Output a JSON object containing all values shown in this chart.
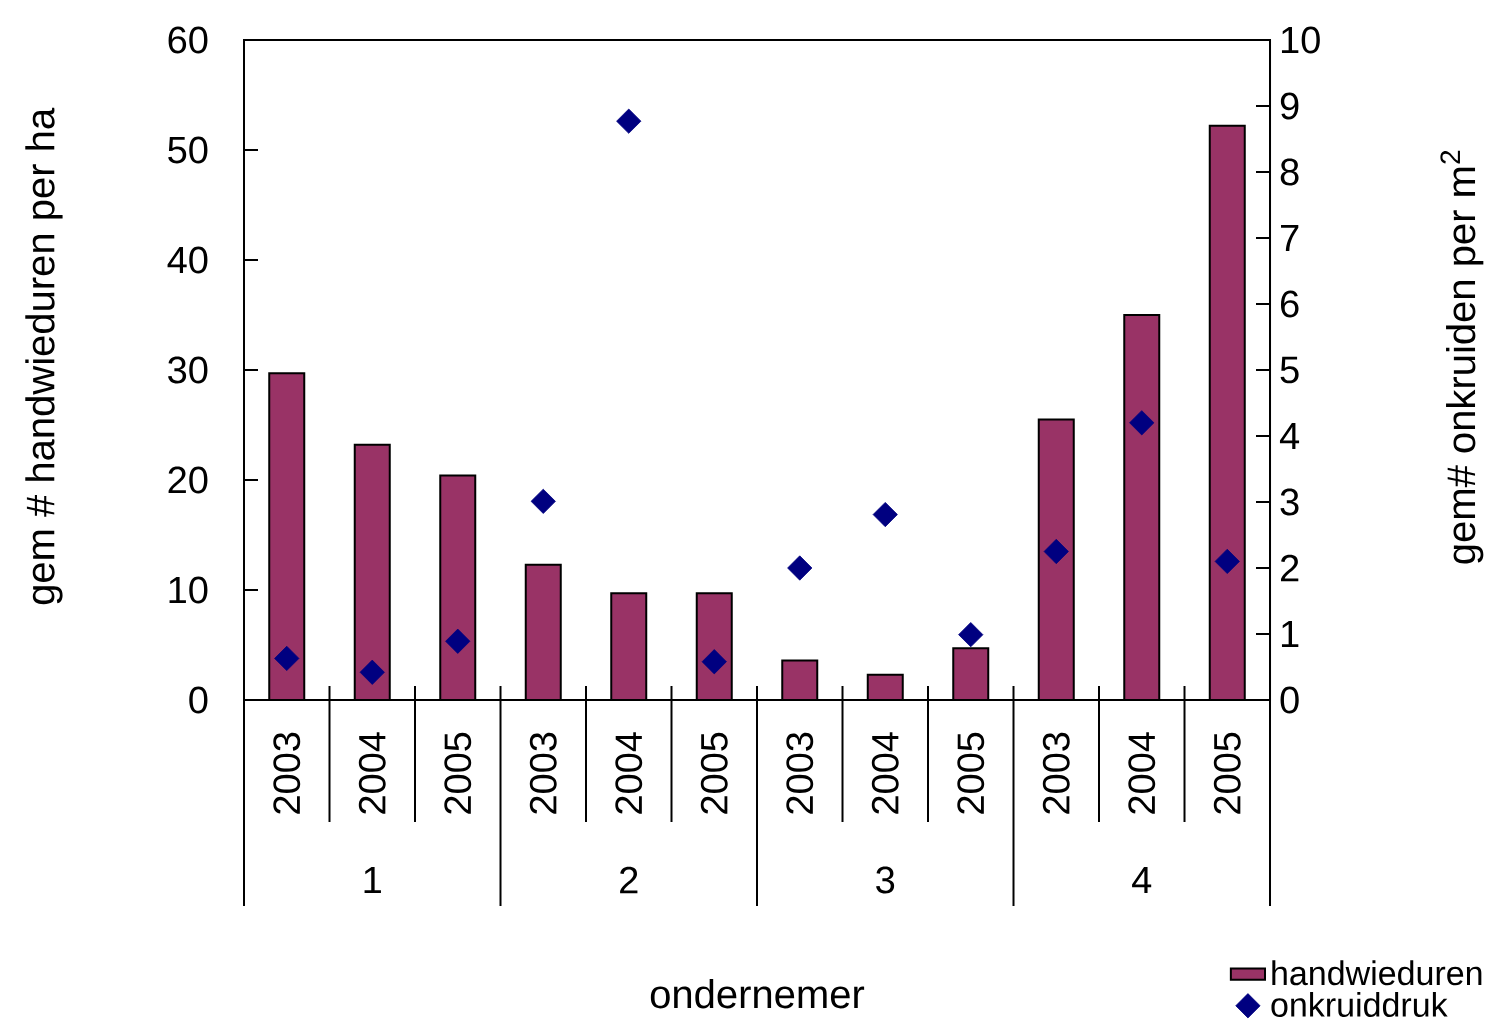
{
  "chart_data": {
    "type": "bar",
    "xlabel": "ondernemer",
    "ylabel": "gem # handwieduren per ha",
    "y2label": "gem# onkruiden per m$^{2}$",
    "categories": [
      "2003",
      "2004",
      "2005",
      "2003",
      "2004",
      "2005",
      "2003",
      "2004",
      "2005",
      "2003",
      "2004",
      "2005"
    ],
    "annotations": [
      "1",
      "2",
      "3",
      "4"
    ],
    "series": [
      {
        "name": "handwieduren",
        "color": "#993366",
        "values": [
          29.7,
          23.2,
          20.4,
          12.3,
          9.7,
          9.7,
          3.6,
          2.3,
          4.7,
          25.5,
          35.0,
          52.2
        ]
      },
      {
        "name": "onkruiddruk",
        "type": "scatter",
        "axis": "y2",
        "color": "#000080",
        "marker": "diamond",
        "values": [
          0.63,
          0.42,
          0.89,
          3.01,
          8.77,
          0.58,
          2.0,
          2.81,
          0.99,
          2.25,
          4.2,
          2.1
        ]
      }
    ],
    "ylim": [
      0,
      60
    ],
    "yticks": [
      0,
      10,
      20,
      30,
      40,
      50,
      60
    ],
    "y2lim": [
      0,
      10
    ],
    "y2ticks": [
      0,
      1,
      2,
      3,
      4,
      5,
      6,
      7,
      8,
      9,
      10
    ],
    "legend": "bottom right",
    "grid": false
  }
}
